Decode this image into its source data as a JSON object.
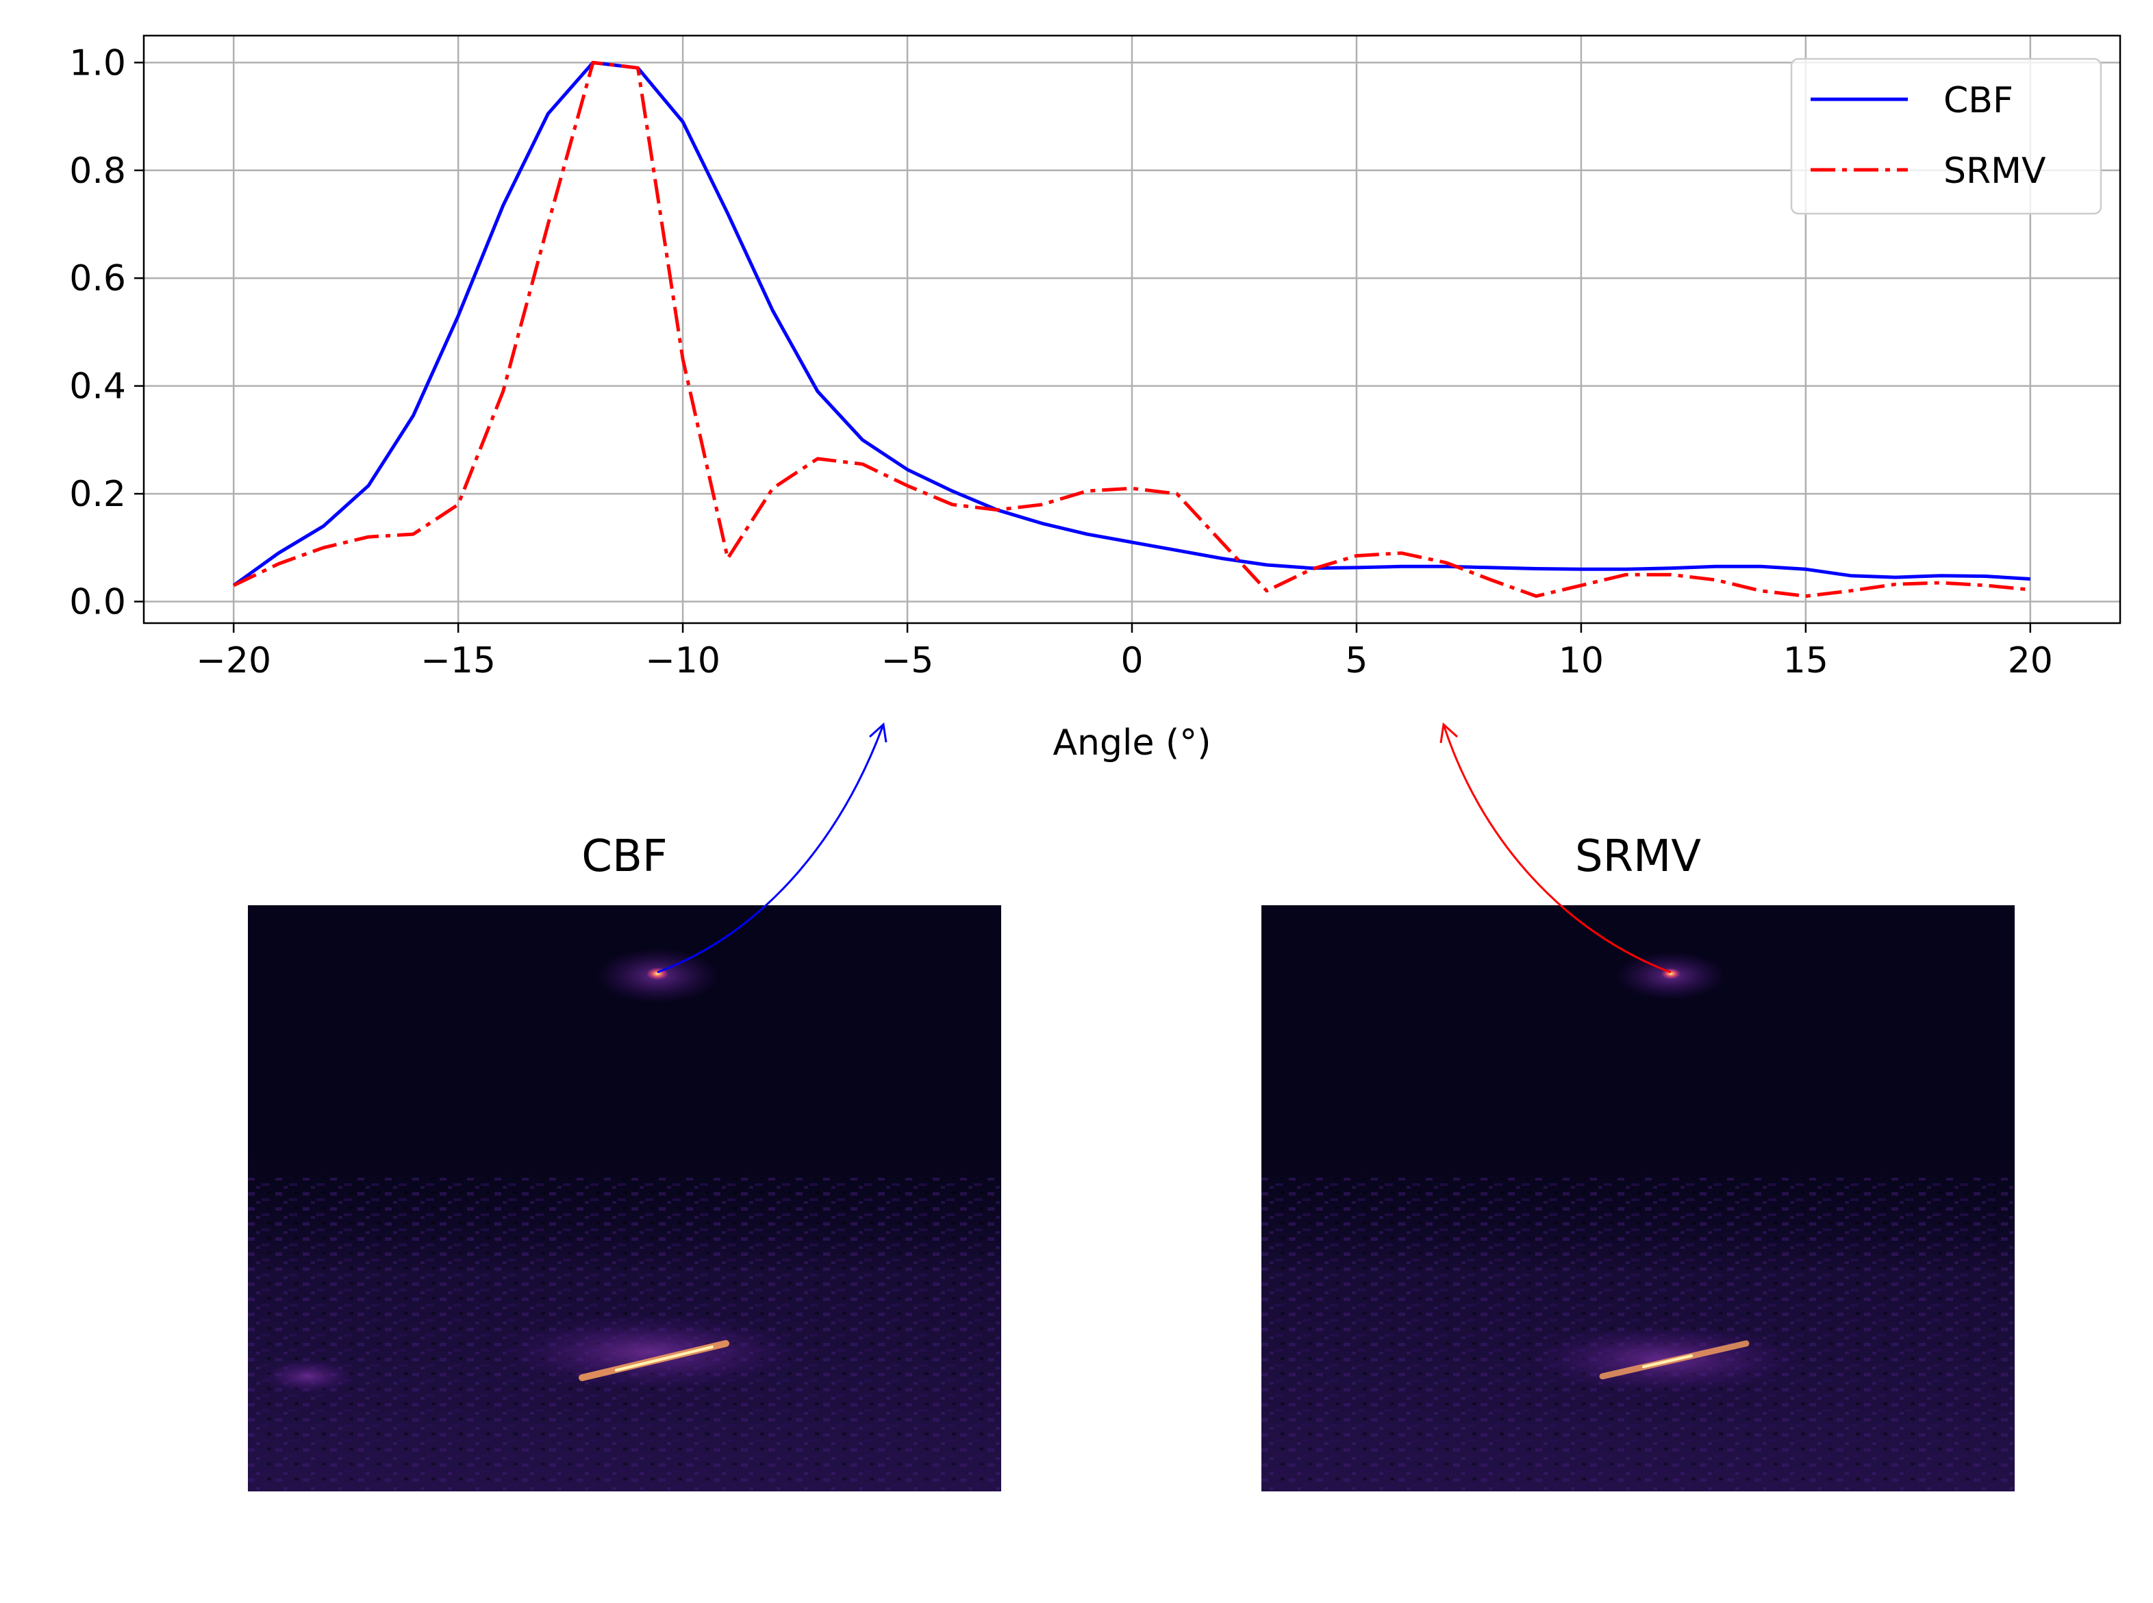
{
  "chart_data": {
    "type": "line",
    "xlabel": "Angle (°)",
    "ylabel": "",
    "xlim": [
      -22,
      22
    ],
    "ylim": [
      -0.04,
      1.05
    ],
    "xticks": [
      -20,
      -15,
      -10,
      -5,
      0,
      5,
      10,
      15,
      20
    ],
    "yticks": [
      0.0,
      0.2,
      0.4,
      0.6,
      0.8,
      1.0
    ],
    "xtick_labels": [
      "−20",
      "−15",
      "−10",
      "−5",
      "0",
      "5",
      "10",
      "15",
      "20"
    ],
    "ytick_labels": [
      "0.0",
      "0.2",
      "0.4",
      "0.6",
      "0.8",
      "1.0"
    ],
    "grid": true,
    "legend_position": "top-right",
    "x": [
      -20,
      -19,
      -18,
      -17,
      -16,
      -15,
      -14,
      -13,
      -12,
      -11,
      -10,
      -9,
      -8,
      -7,
      -6,
      -5,
      -4,
      -3,
      -2,
      -1,
      0,
      1,
      2,
      3,
      4,
      5,
      6,
      7,
      8,
      9,
      10,
      11,
      12,
      13,
      14,
      15,
      16,
      17,
      18,
      19,
      20
    ],
    "series": [
      {
        "name": "CBF",
        "color": "#0000ff",
        "style": "solid",
        "values": [
          0.03,
          0.09,
          0.14,
          0.215,
          0.345,
          0.53,
          0.735,
          0.905,
          1.0,
          0.99,
          0.89,
          0.72,
          0.54,
          0.39,
          0.3,
          0.245,
          0.205,
          0.17,
          0.145,
          0.125,
          0.11,
          0.095,
          0.08,
          0.068,
          0.062,
          0.063,
          0.065,
          0.065,
          0.063,
          0.061,
          0.06,
          0.06,
          0.062,
          0.065,
          0.065,
          0.06,
          0.048,
          0.045,
          0.048,
          0.047,
          0.042
        ]
      },
      {
        "name": "SRMV",
        "color": "#ff0000",
        "style": "dashdot",
        "values": [
          0.03,
          0.07,
          0.1,
          0.12,
          0.125,
          0.18,
          0.39,
          0.7,
          1.0,
          0.99,
          0.45,
          0.08,
          0.21,
          0.265,
          0.255,
          0.215,
          0.18,
          0.17,
          0.18,
          0.205,
          0.21,
          0.2,
          0.11,
          0.02,
          0.06,
          0.085,
          0.09,
          0.072,
          0.04,
          0.01,
          0.03,
          0.05,
          0.05,
          0.04,
          0.02,
          0.01,
          0.02,
          0.032,
          0.035,
          0.03,
          0.022
        ]
      }
    ]
  },
  "images": [
    {
      "title": "CBF",
      "arrow_color": "#0000ff",
      "colormap": "magma"
    },
    {
      "title": "SRMV",
      "arrow_color": "#ff0000",
      "colormap": "magma"
    }
  ]
}
